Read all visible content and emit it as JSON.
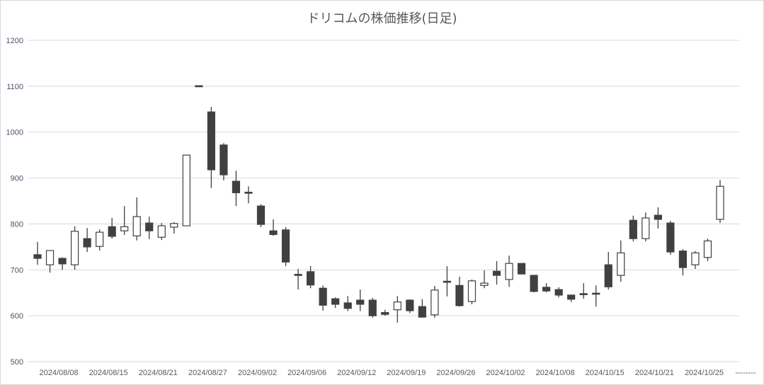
{
  "chart_data": {
    "type": "candlestick",
    "title": "ドリコムの株価推移(日足)",
    "xlabel": "",
    "ylabel": "",
    "ylim": [
      500,
      1200
    ],
    "yticks": [
      500,
      600,
      700,
      800,
      900,
      1000,
      1100,
      1200
    ],
    "grid": true,
    "x_tick_labels": [
      "2024/08/08",
      "2024/08/15",
      "2024/08/21",
      "2024/08/27",
      "2024/09/02",
      "2024/09/06",
      "2024/09/12",
      "2024/09/19",
      "2024/09/26",
      "2024/10/02",
      "2024/10/08",
      "2024/10/15",
      "2024/10/21",
      "2024/10/25",
      "--------"
    ],
    "colors": {
      "up_fill": "#ffffff",
      "down_fill": "#404040",
      "stroke": "#404040",
      "grid": "#d9d9d9"
    },
    "dates": [
      "2024/08/06",
      "2024/08/07",
      "2024/08/08",
      "2024/08/09",
      "2024/08/13",
      "2024/08/14",
      "2024/08/15",
      "2024/08/16",
      "2024/08/19",
      "2024/08/20",
      "2024/08/21",
      "2024/08/22",
      "2024/08/23",
      "2024/08/26",
      "2024/08/27",
      "2024/08/28",
      "2024/08/29",
      "2024/08/30",
      "2024/09/02",
      "2024/09/03",
      "2024/09/04",
      "2024/09/05",
      "2024/09/06",
      "2024/09/09",
      "2024/09/10",
      "2024/09/11",
      "2024/09/12",
      "2024/09/13",
      "2024/09/17",
      "2024/09/18",
      "2024/09/19",
      "2024/09/20",
      "2024/09/24",
      "2024/09/25",
      "2024/09/26",
      "2024/09/27",
      "2024/09/30",
      "2024/10/01",
      "2024/10/02",
      "2024/10/03",
      "2024/10/04",
      "2024/10/07",
      "2024/10/08",
      "2024/10/09",
      "2024/10/10",
      "2024/10/11",
      "2024/10/15",
      "2024/10/16",
      "2024/10/17",
      "2024/10/18",
      "2024/10/21",
      "2024/10/22",
      "2024/10/23",
      "2024/10/24",
      "2024/10/25",
      "2024/10/28"
    ],
    "ohlc": [
      [
        733,
        761,
        711,
        725
      ],
      [
        711,
        742,
        694,
        742
      ],
      [
        725,
        727,
        700,
        713
      ],
      [
        711,
        795,
        700,
        784
      ],
      [
        768,
        791,
        739,
        750
      ],
      [
        751,
        788,
        742,
        782
      ],
      [
        794,
        813,
        768,
        773
      ],
      [
        785,
        839,
        776,
        794
      ],
      [
        774,
        858,
        764,
        816
      ],
      [
        802,
        816,
        767,
        785
      ],
      [
        771,
        802,
        765,
        796
      ],
      [
        793,
        804,
        779,
        801
      ],
      [
        796,
        950,
        796,
        950
      ],
      [
        1100,
        1100,
        1100,
        1100
      ],
      [
        1044,
        1055,
        878,
        918
      ],
      [
        972,
        976,
        895,
        907
      ],
      [
        893,
        916,
        839,
        868
      ],
      [
        868,
        882,
        845,
        867
      ],
      [
        839,
        843,
        793,
        799
      ],
      [
        785,
        810,
        774,
        777
      ],
      [
        787,
        793,
        708,
        717
      ],
      [
        689,
        702,
        657,
        688
      ],
      [
        696,
        708,
        660,
        667
      ],
      [
        660,
        666,
        611,
        623
      ],
      [
        637,
        640,
        617,
        625
      ],
      [
        628,
        643,
        610,
        616
      ],
      [
        634,
        657,
        610,
        625
      ],
      [
        634,
        639,
        596,
        600
      ],
      [
        607,
        613,
        600,
        603
      ],
      [
        613,
        643,
        585,
        630
      ],
      [
        634,
        636,
        606,
        611
      ],
      [
        620,
        636,
        596,
        597
      ],
      [
        602,
        665,
        596,
        656
      ],
      [
        674,
        708,
        642,
        673
      ],
      [
        666,
        685,
        620,
        622
      ],
      [
        631,
        679,
        625,
        676
      ],
      [
        666,
        699,
        660,
        671
      ],
      [
        697,
        719,
        668,
        688
      ],
      [
        679,
        731,
        663,
        714
      ],
      [
        714,
        714,
        690,
        691
      ],
      [
        688,
        688,
        651,
        653
      ],
      [
        662,
        671,
        651,
        654
      ],
      [
        657,
        662,
        640,
        645
      ],
      [
        645,
        646,
        630,
        636
      ],
      [
        646,
        671,
        637,
        647
      ],
      [
        647,
        666,
        620,
        648
      ],
      [
        711,
        739,
        657,
        663
      ],
      [
        688,
        764,
        674,
        737
      ],
      [
        808,
        818,
        762,
        768
      ],
      [
        768,
        825,
        762,
        813
      ],
      [
        819,
        836,
        790,
        810
      ],
      [
        802,
        807,
        733,
        739
      ],
      [
        741,
        745,
        688,
        705
      ],
      [
        711,
        741,
        702,
        737
      ],
      [
        727,
        768,
        719,
        763
      ],
      [
        810,
        896,
        802,
        882
      ]
    ]
  }
}
